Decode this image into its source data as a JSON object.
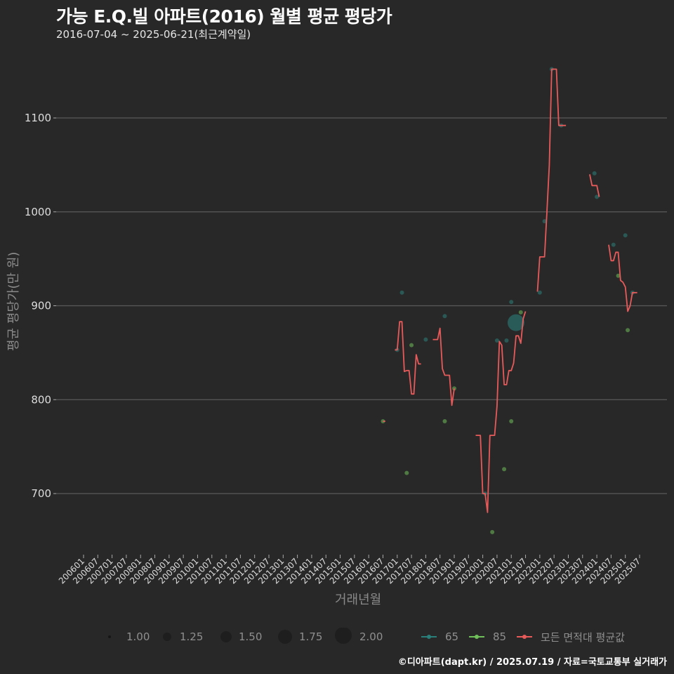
{
  "header": {
    "title": "가능 E.Q.빌 아파트(2016) 월별 평균 평당가",
    "subtitle": "2016-07-04 ~ 2025-06-21(최근계약일)"
  },
  "caption": "©디아파트(dapt.kr) / 2025.07.19 / 자료=국토교통부 실거래가",
  "colors": {
    "background": "#282828",
    "grid": "#5a5a5a",
    "area_65": "#2a7f7a",
    "area_85": "#6fbf5a",
    "avg_line": "#e85a5a"
  },
  "chart_data": {
    "type": "line",
    "title": "가능 E.Q.빌 아파트(2016) 월별 평균 평당가",
    "subtitle": "2016-07-04 ~ 2025-06-21(최근계약일)",
    "xlabel": "거래년월",
    "ylabel": "평균 평당가(만 원)",
    "ylim": [
      640,
      1160
    ],
    "yticks": [
      700,
      800,
      900,
      1000,
      1100
    ],
    "xticks": [
      "200601",
      "200607",
      "200701",
      "200707",
      "200801",
      "200807",
      "200901",
      "200907",
      "201001",
      "201007",
      "201101",
      "201107",
      "201201",
      "201207",
      "201301",
      "201307",
      "201401",
      "201407",
      "201501",
      "201507",
      "201601",
      "201607",
      "201701",
      "201707",
      "201801",
      "201807",
      "201901",
      "201907",
      "202001",
      "202007",
      "202101",
      "202107",
      "202201",
      "202207",
      "202301",
      "202307",
      "202401",
      "202407",
      "202501",
      "202507"
    ],
    "grid": true,
    "legend": {
      "size": [
        {
          "label": "1.00",
          "r": 2
        },
        {
          "label": "1.25",
          "r": 6
        },
        {
          "label": "1.50",
          "r": 8
        },
        {
          "label": "1.75",
          "r": 10
        },
        {
          "label": "2.00",
          "r": 12
        }
      ],
      "series": [
        {
          "label": "65",
          "color": "#2a7f7a"
        },
        {
          "label": "85",
          "color": "#6fbf5a"
        },
        {
          "label": "모든 면적대 평균값",
          "color": "#e85a5a"
        }
      ]
    },
    "avg_line_segments": [
      [
        [
          "201607",
          777
        ],
        [
          "201608",
          777
        ]
      ],
      [
        [
          "201612",
          853
        ],
        [
          "201701",
          853
        ],
        [
          "201702",
          883
        ],
        [
          "201703",
          883
        ],
        [
          "201704",
          830
        ],
        [
          "201705",
          831
        ],
        [
          "201706",
          831
        ],
        [
          "201707",
          806
        ],
        [
          "201708",
          806
        ],
        [
          "201709",
          848
        ],
        [
          "201710",
          838
        ],
        [
          "201711",
          838
        ]
      ],
      [
        [
          "201804",
          864
        ],
        [
          "201805",
          864
        ],
        [
          "201806",
          864
        ],
        [
          "201807",
          876
        ],
        [
          "201808",
          833
        ],
        [
          "201809",
          826
        ],
        [
          "201810",
          826
        ],
        [
          "201811",
          826
        ],
        [
          "201812",
          794
        ],
        [
          "201901",
          812
        ]
      ],
      [
        [
          "201910",
          762
        ],
        [
          "201911",
          762
        ],
        [
          "201912",
          762
        ],
        [
          "202001",
          700
        ],
        [
          "202002",
          700
        ],
        [
          "202003",
          680
        ],
        [
          "202004",
          762
        ],
        [
          "202005",
          762
        ],
        [
          "202006",
          762
        ],
        [
          "202007",
          793
        ],
        [
          "202008",
          862
        ],
        [
          "202009",
          858
        ],
        [
          "202010",
          816
        ],
        [
          "202011",
          816
        ],
        [
          "202012",
          831
        ],
        [
          "202101",
          831
        ],
        [
          "202102",
          839
        ],
        [
          "202103",
          868
        ],
        [
          "202104",
          868
        ],
        [
          "202105",
          860
        ],
        [
          "202106",
          886
        ],
        [
          "202107",
          894
        ]
      ],
      [
        [
          "202112",
          915
        ],
        [
          "202201",
          952
        ],
        [
          "202202",
          952
        ],
        [
          "202203",
          952
        ],
        [
          "202204",
          1000
        ],
        [
          "202205",
          1050
        ],
        [
          "202206",
          1152
        ],
        [
          "202207",
          1152
        ],
        [
          "202208",
          1152
        ],
        [
          "202209",
          1092
        ],
        [
          "202210",
          1092
        ],
        [
          "202211",
          1092
        ],
        [
          "202212",
          1092
        ]
      ],
      [
        [
          "202310",
          1040
        ],
        [
          "202311",
          1028
        ],
        [
          "202312",
          1028
        ],
        [
          "202401",
          1028
        ],
        [
          "202402",
          1016
        ]
      ],
      [
        [
          "202406",
          965
        ],
        [
          "202407",
          948
        ],
        [
          "202408",
          948
        ],
        [
          "202409",
          957
        ],
        [
          "202410",
          957
        ],
        [
          "202411",
          927
        ],
        [
          "202412",
          925
        ],
        [
          "202501",
          920
        ],
        [
          "202502",
          894
        ],
        [
          "202503",
          900
        ],
        [
          "202504",
          914
        ],
        [
          "202505",
          914
        ],
        [
          "202506",
          914
        ]
      ]
    ],
    "points_65": [
      [
        "201701",
        853,
        1
      ],
      [
        "201703",
        914,
        1
      ],
      [
        "201801",
        864,
        1
      ],
      [
        "201809",
        889,
        1
      ],
      [
        "202002",
        700,
        1
      ],
      [
        "202007",
        863,
        1
      ],
      [
        "202011",
        863,
        1
      ],
      [
        "202101",
        904,
        1
      ],
      [
        "202103",
        882,
        2
      ],
      [
        "202201",
        914,
        1
      ],
      [
        "202203",
        990,
        1
      ],
      [
        "202206",
        1152,
        1
      ],
      [
        "202210",
        1092,
        1
      ],
      [
        "202312",
        1041,
        1
      ],
      [
        "202401",
        1016,
        1
      ],
      [
        "202408",
        965,
        1
      ],
      [
        "202501",
        975,
        1
      ],
      [
        "202504",
        914,
        1
      ]
    ],
    "points_85": [
      [
        "201607",
        777,
        1
      ],
      [
        "201705",
        722,
        1
      ],
      [
        "201707",
        858,
        1
      ],
      [
        "201809",
        777,
        1
      ],
      [
        "201901",
        812,
        1
      ],
      [
        "202005",
        659,
        1
      ],
      [
        "202010",
        726,
        1
      ],
      [
        "202101",
        777,
        1
      ],
      [
        "202105",
        893,
        1
      ],
      [
        "202410",
        932,
        1
      ],
      [
        "202502",
        874,
        1
      ]
    ]
  },
  "legend_labels": {
    "s1": "1.00",
    "s2": "1.25",
    "s3": "1.50",
    "s4": "1.75",
    "s5": "2.00",
    "a65": "65",
    "a85": "85",
    "avg": "모든 면적대 평균값"
  }
}
